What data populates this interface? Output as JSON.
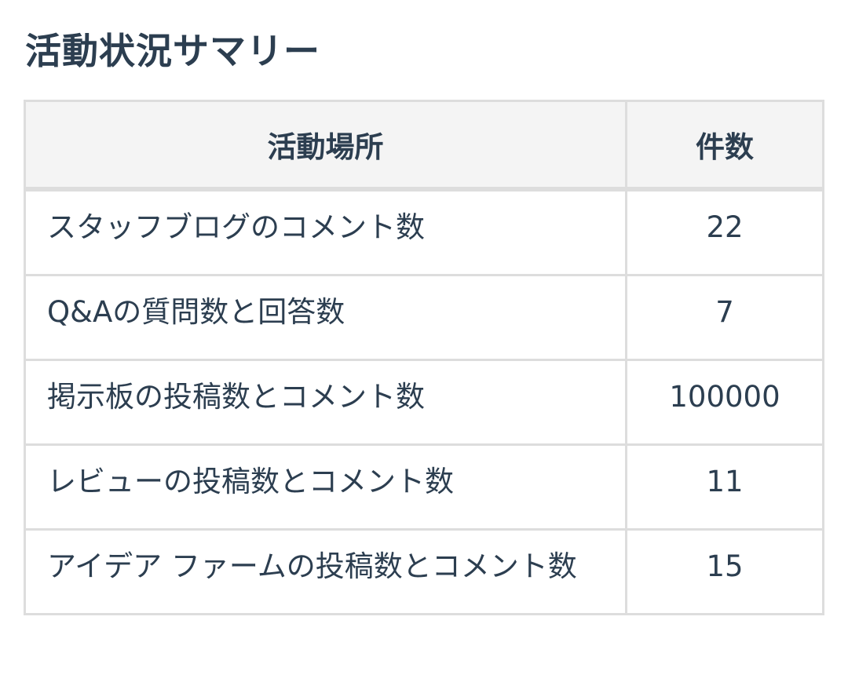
{
  "title": "活動状況サマリー",
  "table": {
    "headers": [
      "活動場所",
      "件数"
    ],
    "rows": [
      {
        "place": "スタッフブログのコメント数",
        "count": "22"
      },
      {
        "place": "Q&Aの質問数と回答数",
        "count": "7"
      },
      {
        "place": "掲示板の投稿数とコメント数",
        "count": "100000"
      },
      {
        "place": "レビューの投稿数とコメント数",
        "count": "11"
      },
      {
        "place": "アイデア ファームの投稿数とコメント数",
        "count": "15"
      }
    ]
  }
}
